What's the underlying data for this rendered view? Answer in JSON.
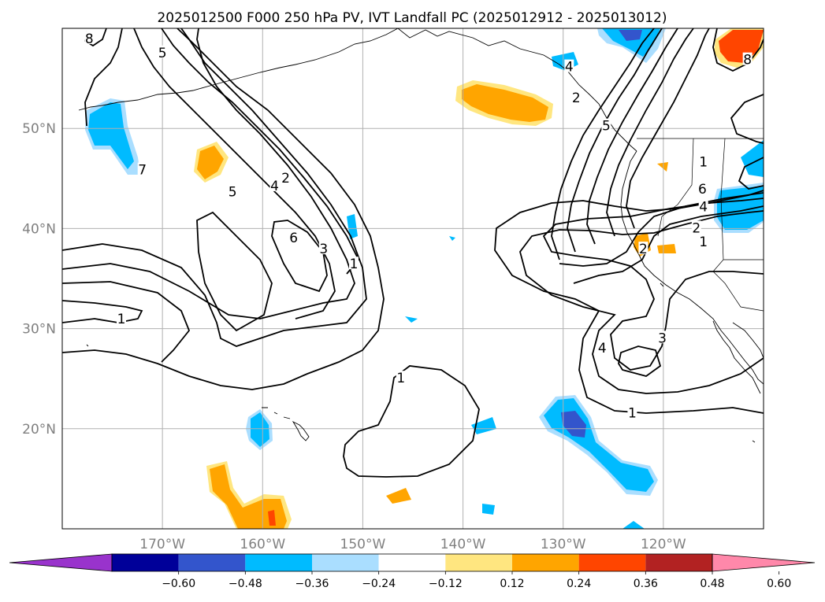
{
  "title": "2025012500 F000 250 hPa PV, IVT Landfall PC (2025012912 - 2025013012)",
  "map": {
    "lon_range": [
      -180,
      -110
    ],
    "lat_range": [
      10,
      60
    ],
    "lat_ticks": [
      {
        "lat": 20,
        "label": "20°N"
      },
      {
        "lat": 30,
        "label": "30°N"
      },
      {
        "lat": 40,
        "label": "40°N"
      },
      {
        "lat": 50,
        "label": "50°N"
      }
    ],
    "lon_ticks": [
      {
        "lon": -170,
        "label": "170°W"
      },
      {
        "lon": -160,
        "label": "160°W"
      },
      {
        "lon": -150,
        "label": "150°W"
      },
      {
        "lon": -140,
        "label": "140°W"
      },
      {
        "lon": -130,
        "label": "130°W"
      },
      {
        "lon": -120,
        "label": "120°W"
      }
    ],
    "contour_labels": [
      {
        "text": "8",
        "lon": -177.3,
        "lat": 58.9
      },
      {
        "text": "5",
        "lon": -170.0,
        "lat": 57.5
      },
      {
        "text": "7",
        "lon": -172.0,
        "lat": 45.8
      },
      {
        "text": "5",
        "lon": -163.0,
        "lat": 43.6
      },
      {
        "text": "4",
        "lon": -158.8,
        "lat": 44.2
      },
      {
        "text": "2",
        "lon": -157.7,
        "lat": 45.0
      },
      {
        "text": "6",
        "lon": -156.9,
        "lat": 39.0
      },
      {
        "text": "3",
        "lon": -153.9,
        "lat": 37.9
      },
      {
        "text": "1",
        "lon": -150.9,
        "lat": 36.4
      },
      {
        "text": "1",
        "lon": -174.1,
        "lat": 30.9
      },
      {
        "text": "1",
        "lon": -146.2,
        "lat": 25.0
      },
      {
        "text": "4",
        "lon": -129.4,
        "lat": 56.1
      },
      {
        "text": "2",
        "lon": -128.7,
        "lat": 53.0
      },
      {
        "text": "5",
        "lon": -125.7,
        "lat": 50.2
      },
      {
        "text": "8",
        "lon": -111.6,
        "lat": 56.8
      },
      {
        "text": "1",
        "lon": -116.0,
        "lat": 46.6
      },
      {
        "text": "6",
        "lon": -116.1,
        "lat": 43.9
      },
      {
        "text": "4",
        "lon": -116.0,
        "lat": 42.1
      },
      {
        "text": "2",
        "lon": -116.7,
        "lat": 40.0
      },
      {
        "text": "1",
        "lon": -116.0,
        "lat": 38.6
      },
      {
        "text": "2",
        "lon": -122.0,
        "lat": 37.9
      },
      {
        "text": "4",
        "lon": -126.1,
        "lat": 28.0
      },
      {
        "text": "3",
        "lon": -120.1,
        "lat": 29.0
      },
      {
        "text": "1",
        "lon": -123.1,
        "lat": 21.5
      }
    ],
    "contour_color": "#000000",
    "grid_color": "#b0b0b0",
    "coast_color": "#000000"
  },
  "colorbar": {
    "colors": [
      "#9933cc",
      "#000099",
      "#3355cc",
      "#00bbff",
      "#aadeff",
      "#ffffff",
      "#ffe680",
      "#ffa500",
      "#ff4500",
      "#b22222",
      "#ff88aa"
    ],
    "tick_labels": [
      "−0.60",
      "−0.48",
      "−0.36",
      "−0.24",
      "−0.12",
      "0.12",
      "0.24",
      "0.36",
      "0.48",
      "0.60"
    ]
  }
}
